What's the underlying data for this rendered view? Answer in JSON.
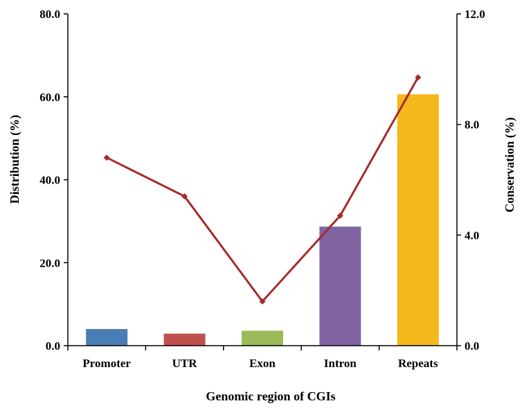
{
  "chart_data": {
    "type": "bar",
    "title": "",
    "categories": [
      "Promoter",
      "UTR",
      "Exon",
      "Intron",
      "Repeats"
    ],
    "series": [
      {
        "name": "Distribution (%)",
        "type": "bar",
        "axis": "left",
        "values": [
          4.0,
          2.9,
          3.6,
          28.7,
          60.6
        ],
        "colors": [
          "#4a7db5",
          "#c0504d",
          "#9bbb59",
          "#8064a2",
          "#f5b81c"
        ]
      },
      {
        "name": "Conservation (%)",
        "type": "line",
        "axis": "right",
        "values": [
          6.8,
          5.4,
          1.6,
          4.7,
          9.7
        ],
        "color": "#a52a2a"
      }
    ],
    "xlabel": "Genomic region of CGIs",
    "ylabel": "Distribution (%)",
    "y2label": "Conservation (%)",
    "ylim": [
      0,
      80
    ],
    "y2lim": [
      0,
      12
    ],
    "yticks": [
      "0.0",
      "20.0",
      "40.0",
      "60.0",
      "80.0"
    ],
    "y2ticks": [
      "0.0",
      "4.0",
      "8.0",
      "12.0"
    ],
    "grid": false,
    "legend": "none"
  }
}
